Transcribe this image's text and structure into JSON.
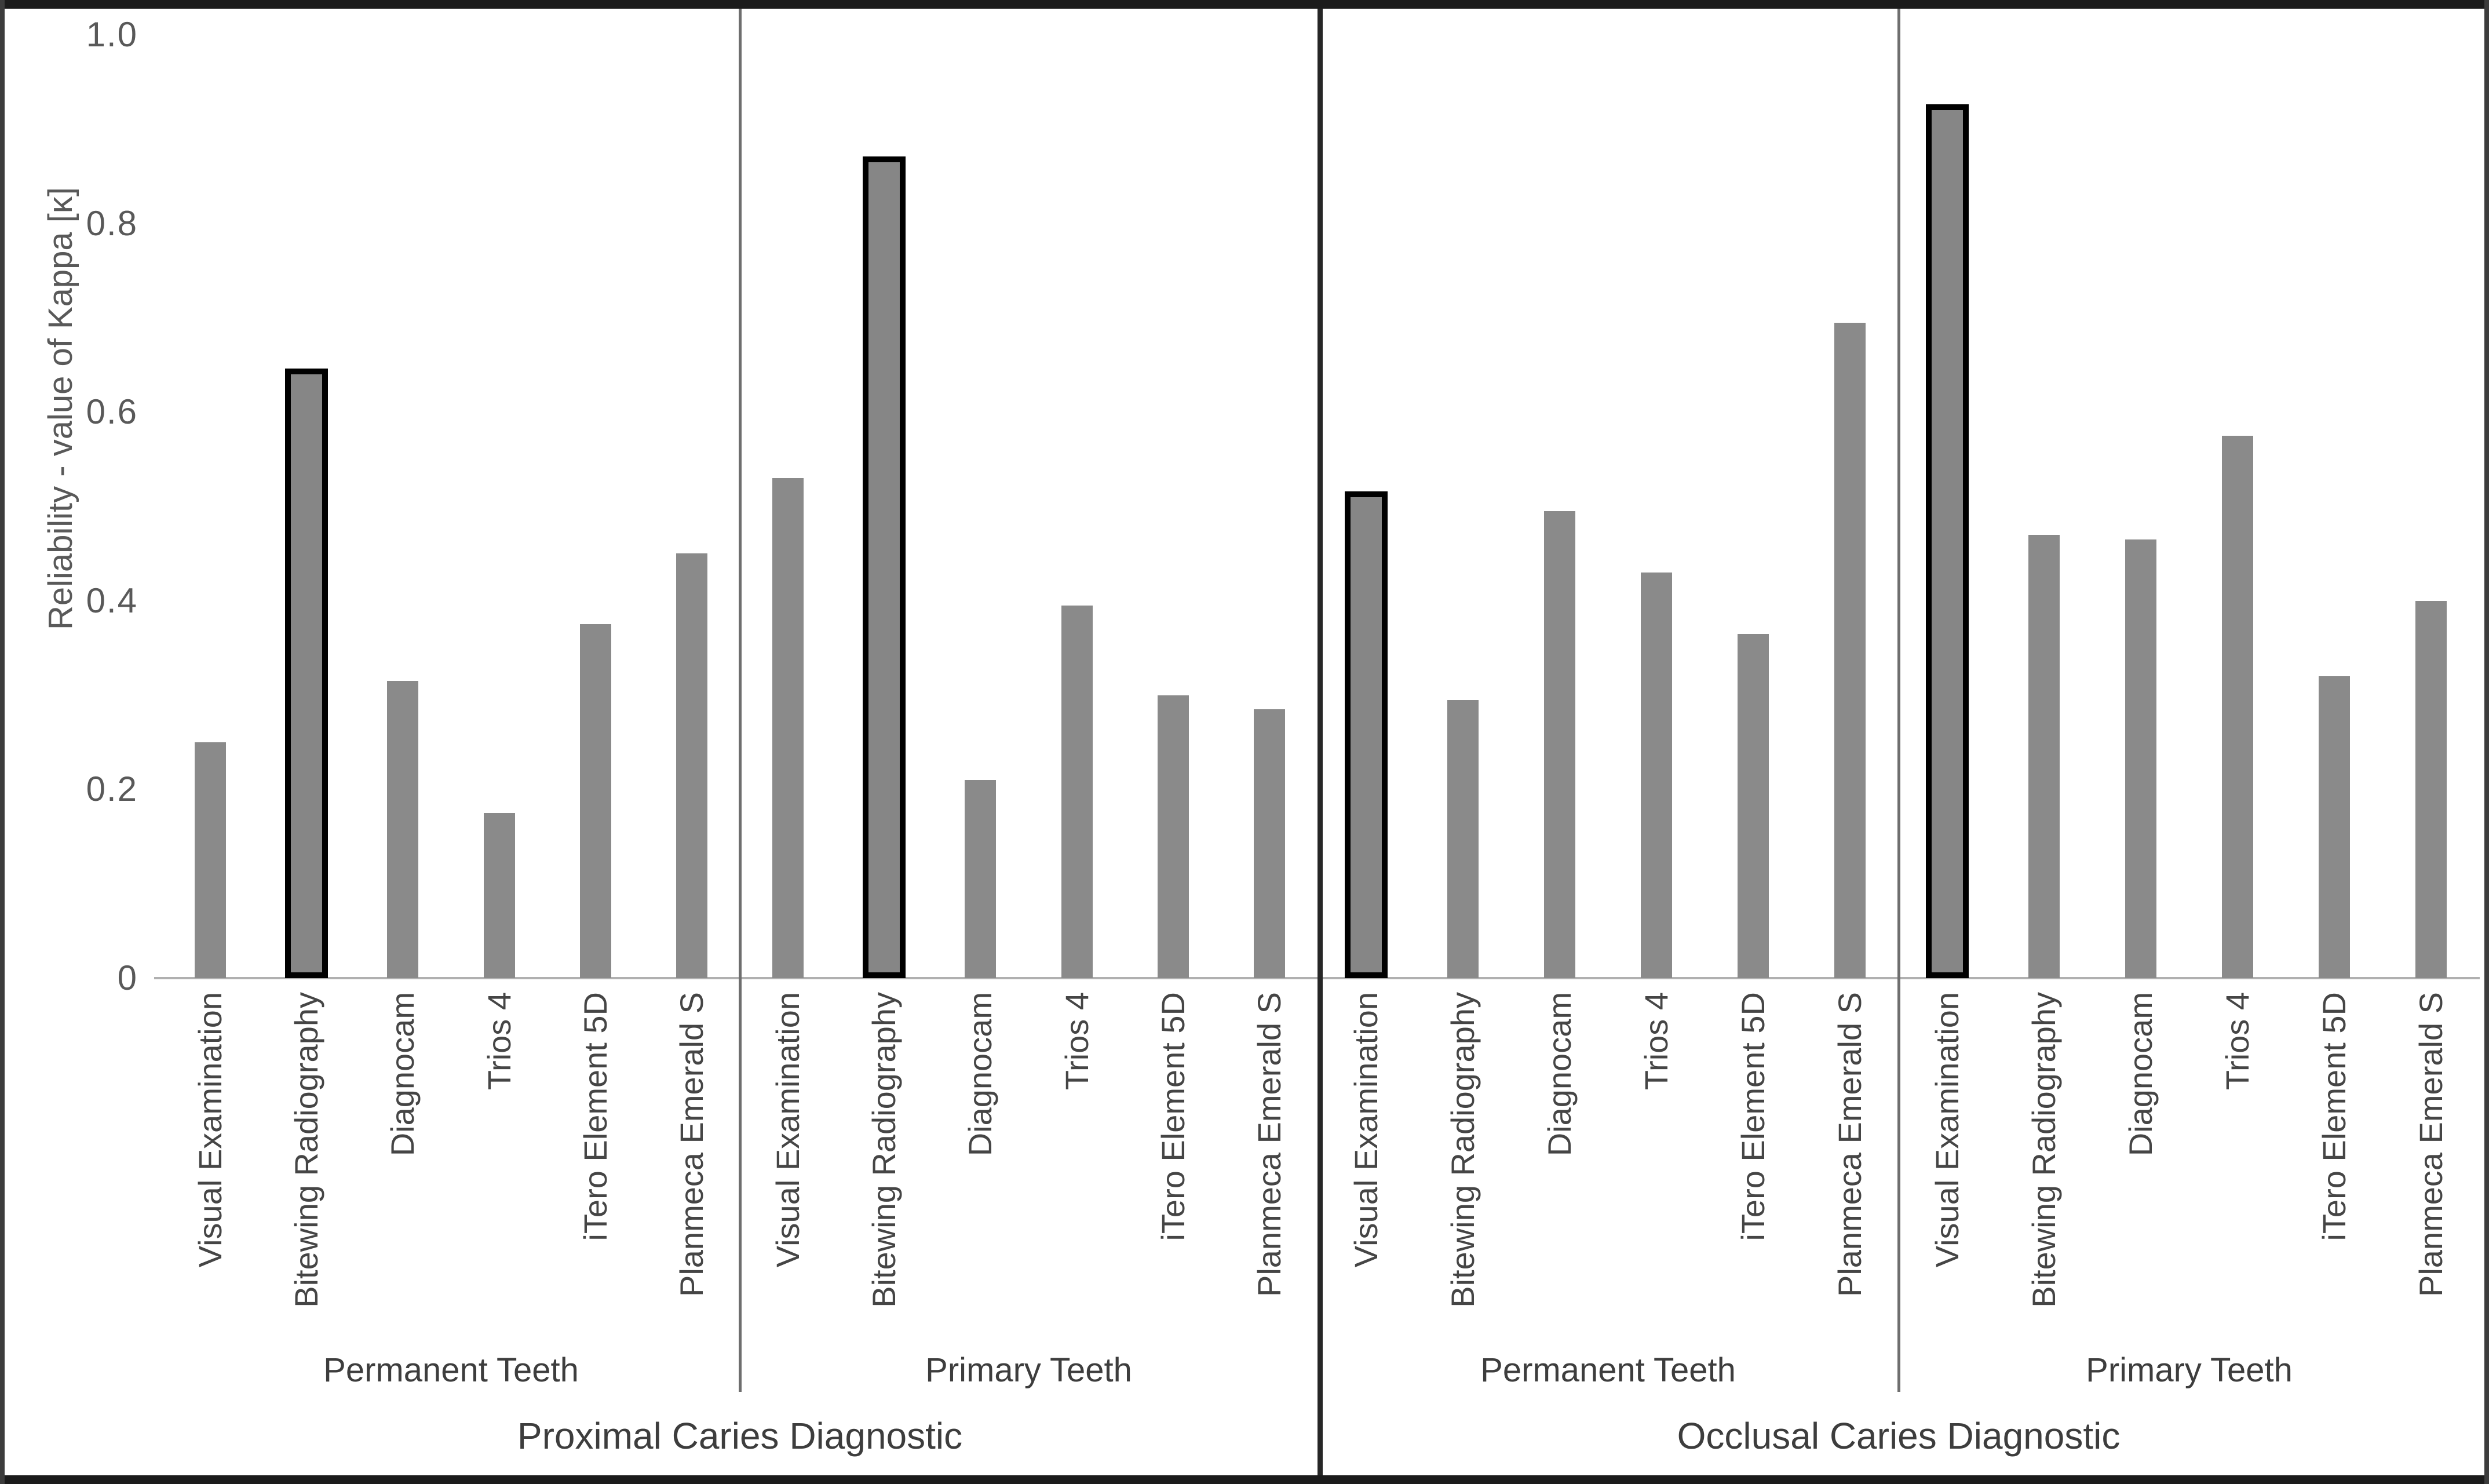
{
  "chart_data": {
    "type": "bar",
    "title": "",
    "ylabel": "Reliability - value of Kappa [κ]",
    "xlabel": "",
    "ylim": [
      0,
      1.0
    ],
    "yticks": [
      {
        "label": "1.0",
        "value": 1.0
      },
      {
        "label": "0.8",
        "value": 0.8
      },
      {
        "label": "0.6",
        "value": 0.6
      },
      {
        "label": "0.4",
        "value": 0.4
      },
      {
        "label": "0.2",
        "value": 0.2
      },
      {
        "label": "0",
        "value": 0.0
      }
    ],
    "grid": false,
    "legend": null,
    "bar_color": "#8a8a8a",
    "highlight_border_color": "#000000",
    "categories": [
      "Visual Examination",
      "Bitewing Radiography",
      "Diagnocam",
      "Trios 4",
      "iTero Element 5D",
      "Planmeca Emerald S"
    ],
    "panels": [
      {
        "label": "Proximal Caries Diagnostic",
        "groups": [
          {
            "label": "Permanent Teeth",
            "bars": [
              {
                "method": "Visual Examination",
                "value": 0.25,
                "highlighted": false
              },
              {
                "method": "Bitewing Radiography",
                "value": 0.64,
                "highlighted": true
              },
              {
                "method": "Diagnocam",
                "value": 0.315,
                "highlighted": false
              },
              {
                "method": "Trios 4",
                "value": 0.175,
                "highlighted": false
              },
              {
                "method": "iTero Element 5D",
                "value": 0.375,
                "highlighted": false
              },
              {
                "method": "Planmeca Emerald S",
                "value": 0.45,
                "highlighted": false
              }
            ]
          },
          {
            "label": "Primary Teeth",
            "bars": [
              {
                "method": "Visual Examination",
                "value": 0.53,
                "highlighted": false
              },
              {
                "method": "Bitewing Radiography",
                "value": 0.865,
                "highlighted": true
              },
              {
                "method": "Diagnocam",
                "value": 0.21,
                "highlighted": false
              },
              {
                "method": "Trios 4",
                "value": 0.395,
                "highlighted": false
              },
              {
                "method": "iTero Element 5D",
                "value": 0.3,
                "highlighted": false
              },
              {
                "method": "Planmeca Emerald S",
                "value": 0.285,
                "highlighted": false
              }
            ]
          }
        ]
      },
      {
        "label": "Occlusal Caries Diagnostic",
        "groups": [
          {
            "label": "Permanent Teeth",
            "bars": [
              {
                "method": "Visual Examination",
                "value": 0.51,
                "highlighted": true
              },
              {
                "method": "Bitewing Radiography",
                "value": 0.295,
                "highlighted": false
              },
              {
                "method": "Diagnocam",
                "value": 0.495,
                "highlighted": false
              },
              {
                "method": "Trios 4",
                "value": 0.43,
                "highlighted": false
              },
              {
                "method": "iTero Element 5D",
                "value": 0.365,
                "highlighted": false
              },
              {
                "method": "Planmeca Emerald S",
                "value": 0.695,
                "highlighted": false
              }
            ]
          },
          {
            "label": "Primary Teeth",
            "bars": [
              {
                "method": "Visual Examination",
                "value": 0.92,
                "highlighted": true
              },
              {
                "method": "Bitewing Radiography",
                "value": 0.47,
                "highlighted": false
              },
              {
                "method": "Diagnocam",
                "value": 0.465,
                "highlighted": false
              },
              {
                "method": "Trios 4",
                "value": 0.575,
                "highlighted": false
              },
              {
                "method": "iTero Element 5D",
                "value": 0.32,
                "highlighted": false
              },
              {
                "method": "Planmeca Emerald S",
                "value": 0.4,
                "highlighted": false
              }
            ]
          }
        ]
      }
    ]
  }
}
